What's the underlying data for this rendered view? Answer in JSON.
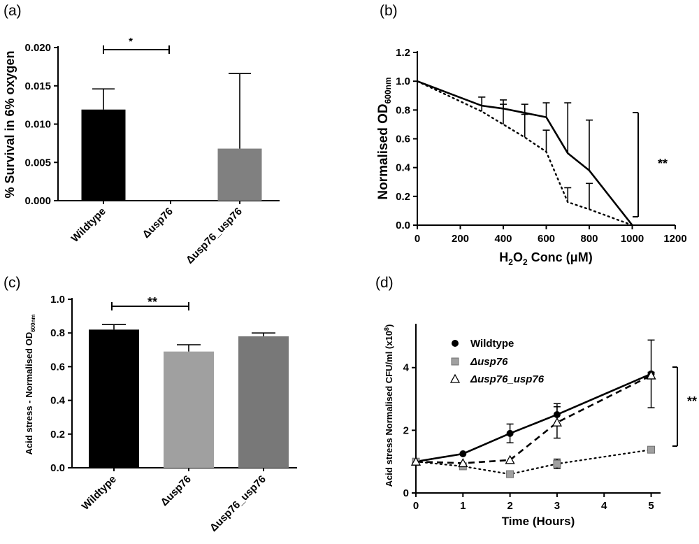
{
  "chart_data": [
    {
      "panel": "(a)",
      "type": "bar",
      "categories": [
        "Wildtype",
        "Δusp76",
        "Δusp76_usp76"
      ],
      "values": [
        0.0119,
        0.0,
        0.0068
      ],
      "errors": [
        0.0027,
        0.0,
        0.0098
      ],
      "bar_colors": [
        "#000000",
        "#555555",
        "#808080"
      ],
      "ylabel": "% Survival in 6% oxygen",
      "ylim": [
        0,
        0.02
      ],
      "yticks": [
        "0.000",
        "0.005",
        "0.010",
        "0.015",
        "0.020"
      ],
      "significance": {
        "from": "Wildtype",
        "to": "Δusp76",
        "label": "*"
      }
    },
    {
      "panel": "(b)",
      "type": "line",
      "xlabel": "H₂O₂ Conc (μM)",
      "ylabel": "Normalised OD600nm",
      "xlim": [
        0,
        1200
      ],
      "ylim": [
        0,
        1.2
      ],
      "xticks": [
        "0",
        "200",
        "400",
        "600",
        "800",
        "1000",
        "1200"
      ],
      "yticks": [
        "0.0",
        "0.2",
        "0.4",
        "0.6",
        "0.8",
        "1.0",
        "1.2"
      ],
      "series": [
        {
          "style": "solid",
          "x": [
            0,
            300,
            400,
            500,
            600,
            700,
            800,
            1000
          ],
          "y": [
            1.0,
            0.83,
            0.81,
            0.78,
            0.75,
            0.5,
            0.38,
            0.0
          ],
          "err": [
            0,
            0.06,
            0.06,
            0.06,
            0.1,
            0.35,
            0.35,
            0
          ]
        },
        {
          "style": "dotted",
          "x": [
            0,
            300,
            400,
            500,
            600,
            700,
            800,
            1000
          ],
          "y": [
            1.0,
            0.79,
            0.7,
            0.61,
            0.51,
            0.16,
            0.11,
            0.0
          ],
          "err": [
            0,
            0.1,
            0.14,
            0.16,
            0.15,
            0.1,
            0.18,
            0
          ]
        }
      ],
      "significance": {
        "label": "**"
      }
    },
    {
      "panel": "(c)",
      "type": "bar",
      "categories": [
        "Wildtype",
        "Δusp76",
        "Δusp76_usp76"
      ],
      "values": [
        0.82,
        0.69,
        0.78
      ],
      "errors": [
        0.03,
        0.04,
        0.02
      ],
      "bar_colors": [
        "#000000",
        "#a0a0a0",
        "#787878"
      ],
      "ylabel": "Acid stress - Normalised OD600nm",
      "ylim": [
        0,
        1.0
      ],
      "yticks": [
        "0.0",
        "0.2",
        "0.4",
        "0.6",
        "0.8",
        "1.0"
      ],
      "significance": {
        "from": "Wildtype",
        "to": "Δusp76",
        "label": "**"
      }
    },
    {
      "panel": "(d)",
      "type": "line",
      "xlabel": "Time (Hours)",
      "ylabel": "Acid stress Normalised CFU/ml (x10⁸)",
      "xlim": [
        0,
        5.2
      ],
      "ylim": [
        0,
        5.4
      ],
      "xticks": [
        "0",
        "1",
        "2",
        "3",
        "4",
        "5"
      ],
      "yticks": [
        "0",
        "2",
        "4"
      ],
      "legend_position": "top-left",
      "series": [
        {
          "name": "Wildtype",
          "style": "solid",
          "marker": "circle",
          "x": [
            0,
            1,
            2,
            3,
            5
          ],
          "y": [
            1.0,
            1.25,
            1.9,
            2.5,
            3.8
          ],
          "err": [
            0.05,
            0.05,
            0.3,
            0.35,
            1.08
          ]
        },
        {
          "name": "Δusp76",
          "style": "dotted",
          "marker": "square",
          "x": [
            0,
            1,
            2,
            3,
            5
          ],
          "y": [
            1.0,
            0.85,
            0.6,
            0.93,
            1.38
          ],
          "err": [
            0.05,
            0.05,
            0.05,
            0.15,
            0.05
          ]
        },
        {
          "name": "Δusp76_usp76",
          "style": "dashed",
          "marker": "triangle",
          "x": [
            0,
            1,
            2,
            3,
            5
          ],
          "y": [
            1.0,
            0.95,
            1.05,
            2.25,
            3.75
          ],
          "err": [
            0.05,
            0.05,
            0.05,
            0.5,
            0.1
          ]
        }
      ],
      "significance": {
        "label": "**"
      }
    }
  ]
}
